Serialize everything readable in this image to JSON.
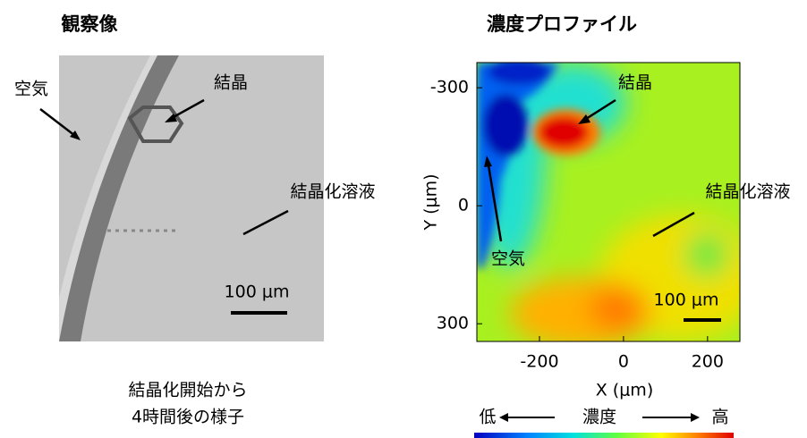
{
  "left": {
    "title": "観察像",
    "labels": {
      "air": "空気",
      "crystal": "結晶",
      "solution": "結晶化溶液"
    },
    "scale_bar": "100 μm",
    "caption": [
      "結晶化開始から",
      "4時間後の様子"
    ]
  },
  "right": {
    "title": "濃度プロファイル",
    "labels": {
      "air": "空気",
      "crystal": "結晶",
      "solution": "結晶化溶液"
    },
    "scale_bar": "100 μm",
    "x_label": "X (μm)",
    "y_label": "Y (μm)",
    "xlim": [
      -349,
      277
    ],
    "ylim": [
      -364,
      345
    ],
    "xticks": [
      -200,
      0,
      200
    ],
    "yticks": [
      -300,
      0,
      300
    ],
    "colorbar": {
      "low": "低",
      "title": "濃度",
      "high": "高"
    }
  }
}
